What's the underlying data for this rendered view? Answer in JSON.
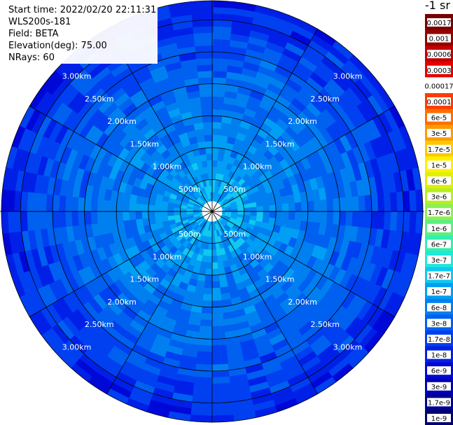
{
  "header": {
    "start_time": "Start time: 2022/02/20 22:11:31",
    "instrument": "WLS200s-181",
    "field": "Field: BETA",
    "elevation": "Elevation(deg): 75.00",
    "nrays": "NRays: 60"
  },
  "colorbar": {
    "unit_label": "-1 sr",
    "ticks": [
      "0.0017",
      "0.001",
      "0.0006",
      "0.0003",
      "0.00017",
      "0.0001",
      "6e-5",
      "3e-5",
      "1.7e-5",
      "1e-5",
      "6e-6",
      "3e-6",
      "1.7e-6",
      "1e-6",
      "6e-7",
      "3e-7",
      "1.7e-7",
      "1e-7",
      "6e-8",
      "3e-8",
      "1.7e-8",
      "1e-8",
      "6e-9",
      "3e-9",
      "1.7e-9",
      "1e-9"
    ],
    "colors": [
      "#7a0000",
      "#950000",
      "#c00000",
      "#e60000",
      "#ffffff",
      "#ff3c00",
      "#ff6e00",
      "#ff9a00",
      "#ffc800",
      "#fff000",
      "#e0f000",
      "#b8ee20",
      "#8cf050",
      "#5cf080",
      "#30f0b0",
      "#20e8d8",
      "#10c8f0",
      "#009ef5",
      "#0080f0",
      "#0060f0",
      "#0040f0",
      "#0020e8",
      "#0008d8",
      "#0000b8",
      "#000098",
      "#000070"
    ]
  },
  "chart_data": {
    "type": "heatmap",
    "subtype": "polar-ppi",
    "field": "BETA",
    "elevation_deg": 75.0,
    "nrays": 60,
    "range_rings_km": [
      0.5,
      1.0,
      1.5,
      2.0,
      2.5,
      3.0
    ],
    "ring_labels": [
      "500m",
      "1.00km",
      "1.50km",
      "2.00km",
      "2.50km",
      "3.00km"
    ],
    "radial_spokes_deg": [
      0,
      30,
      60,
      90,
      120,
      150,
      180,
      210,
      240,
      270,
      300,
      330
    ],
    "max_range_km": 3.3,
    "range_gate_km": 0.1,
    "colorbar_scale": "log",
    "value_range": [
      1e-09,
      0.0017
    ],
    "radial_profile_beta": [
      {
        "range_km": 0.1,
        "beta": 1.2e-07
      },
      {
        "range_km": 0.5,
        "beta": 9e-08
      },
      {
        "range_km": 1.0,
        "beta": 6e-08
      },
      {
        "range_km": 1.5,
        "beta": 5e-08
      },
      {
        "range_km": 2.0,
        "beta": 3.5e-08
      },
      {
        "range_km": 2.5,
        "beta": 2e-08
      },
      {
        "range_km": 3.0,
        "beta": 1.3e-08
      },
      {
        "range_km": 3.3,
        "beta": 8e-09
      }
    ],
    "grid": true
  }
}
